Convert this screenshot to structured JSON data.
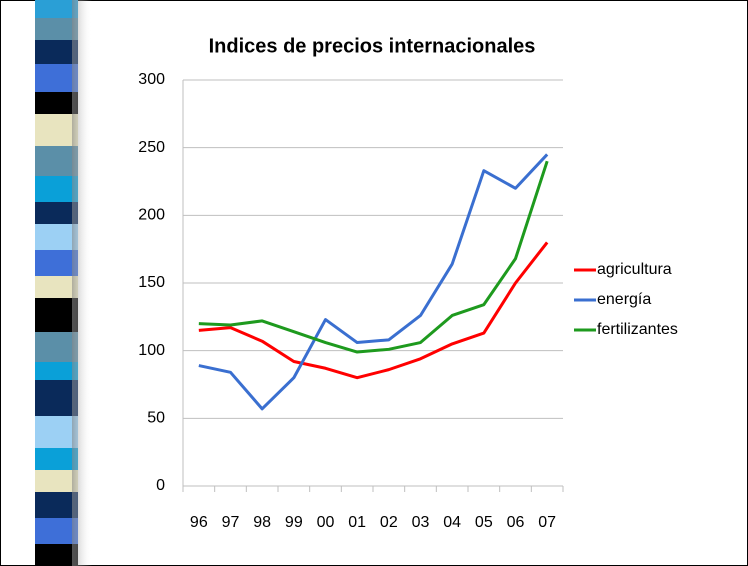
{
  "chart_data": {
    "type": "line",
    "title": "Indices de precios internacionales",
    "categories": [
      "96",
      "97",
      "98",
      "99",
      "00",
      "01",
      "02",
      "03",
      "04",
      "05",
      "06",
      "07"
    ],
    "series": [
      {
        "name": "agricultura",
        "color": "#ff0000",
        "values": [
          115,
          117,
          107,
          92,
          87,
          80,
          86,
          94,
          105,
          113,
          150,
          180
        ]
      },
      {
        "name": "energía",
        "color": "#3a6fd0",
        "values": [
          89,
          84,
          57,
          80,
          123,
          106,
          108,
          126,
          164,
          233,
          220,
          245
        ]
      },
      {
        "name": "fertilizantes",
        "color": "#1e9a1e",
        "values": [
          120,
          119,
          122,
          114,
          106,
          99,
          101,
          106,
          126,
          134,
          168,
          240
        ]
      }
    ],
    "ylim": [
      0,
      300
    ],
    "yticks": [
      0,
      50,
      100,
      150,
      200,
      250,
      300
    ],
    "grid": true,
    "legend": "right"
  }
}
